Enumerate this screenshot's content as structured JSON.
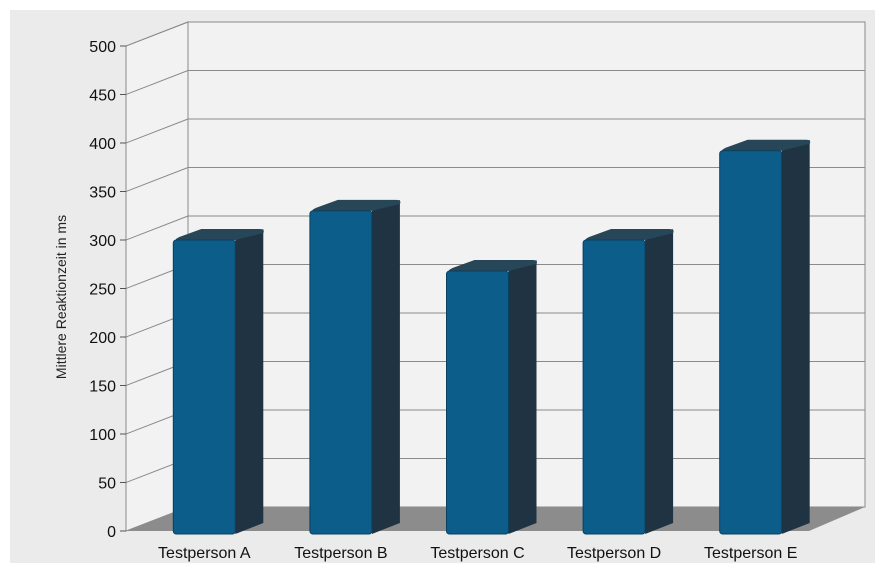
{
  "chart_data": {
    "type": "bar",
    "style": "3d",
    "categories": [
      "Testperson A",
      "Testperson B",
      "Testperson C",
      "Testperson D",
      "Testperson E"
    ],
    "values": [
      300,
      330,
      268,
      300,
      392
    ],
    "ylabel": "Mittlere Reaktionzeit in ms",
    "xlabel": "",
    "ylim": [
      0,
      500
    ],
    "yticks": [
      0,
      50,
      100,
      150,
      200,
      250,
      300,
      350,
      400,
      450,
      500
    ],
    "grid": true,
    "colors": {
      "bar_front": "#0d5d8a",
      "bar_side": "#1f3342",
      "bar_top": "#274657",
      "floor": "#8c8c8c",
      "wall": "#f2f2f2",
      "gridline": "#8a8a8a",
      "background": "#ebebeb"
    }
  }
}
